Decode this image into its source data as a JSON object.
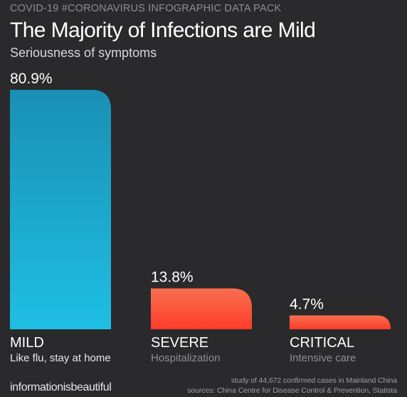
{
  "header": {
    "eyebrow": "COVID-19 #CORONAVIRUS INFOGRAPHIC DATA PACK",
    "title": "The Majority of Infections are Mild",
    "subtitle": "Seriousness of symptoms"
  },
  "footer": {
    "brand": "informationisbeautiful",
    "study_note": "study of 44,672 confirmed cases in Mainland China",
    "sources_note": "sources: China Centre for Disease Control & Prevention, Statista"
  },
  "chart_data": {
    "type": "bar",
    "title": "The Majority of Infections are Mild",
    "subtitle": "Seriousness of symptoms",
    "categories": [
      "MILD",
      "SEVERE",
      "CRITICAL"
    ],
    "descriptions": [
      "Like flu, stay at home",
      "Hospitalization",
      "Intensive care"
    ],
    "values": [
      80.9,
      13.8,
      4.7
    ],
    "value_labels": [
      "80.9%",
      "13.8%",
      "4.7%"
    ],
    "unit": "%",
    "ylim": [
      0,
      80.9
    ],
    "grid": false,
    "legend": "none",
    "colors": {
      "mild_top": "#1a8fb4",
      "mild_bottom": "#1fbfe3",
      "other_top": "#f76f50",
      "other_bottom": "#ff3d2a",
      "description_mild": "#e8e8e8",
      "description_other": "#8f8f93"
    }
  }
}
